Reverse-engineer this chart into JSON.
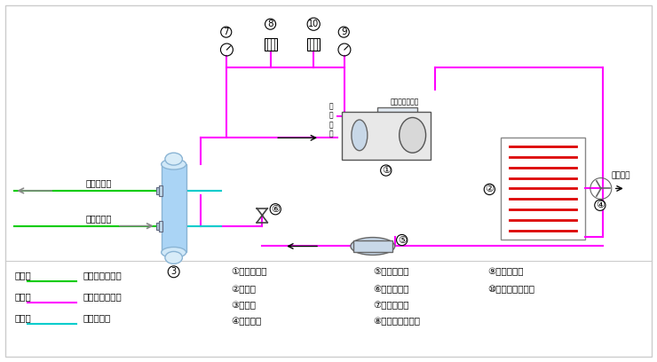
{
  "bg_color": "#f0f0f0",
  "title": "",
  "legend_items": [
    {
      "label": "绿色线",
      "color": "#00cc00",
      "desc": "载冷剂循环回路"
    },
    {
      "label": "红色线",
      "color": "#ff00ff",
      "desc": "制冷剂循环回路"
    },
    {
      "label": "蓝色线",
      "color": "#00ccff",
      "desc": "水循环回路"
    }
  ],
  "components": [
    {
      "num": "①",
      "desc": "螺杆压缩机"
    },
    {
      "num": "②",
      "desc": "冷凝器"
    },
    {
      "num": "③",
      "desc": "蒸发器"
    },
    {
      "num": "④",
      "desc": "冷却风扇"
    },
    {
      "num": "⑤",
      "desc": "干燥过滤器"
    },
    {
      "num": "⑥",
      "desc": "供液膨胀阀"
    },
    {
      "num": "⑦",
      "desc": "低压压力表"
    },
    {
      "num": "⑧",
      "desc": "低压压力控制器"
    },
    {
      "num": "⑨",
      "desc": "高压压力表"
    },
    {
      "num": "⑩",
      "desc": "高压压力控制器"
    }
  ],
  "magenta": "#ff00ff",
  "green": "#00cc00",
  "cyan": "#00cccc",
  "red": "#dd0000",
  "blue_light": "#aad4f5",
  "gray": "#888888"
}
